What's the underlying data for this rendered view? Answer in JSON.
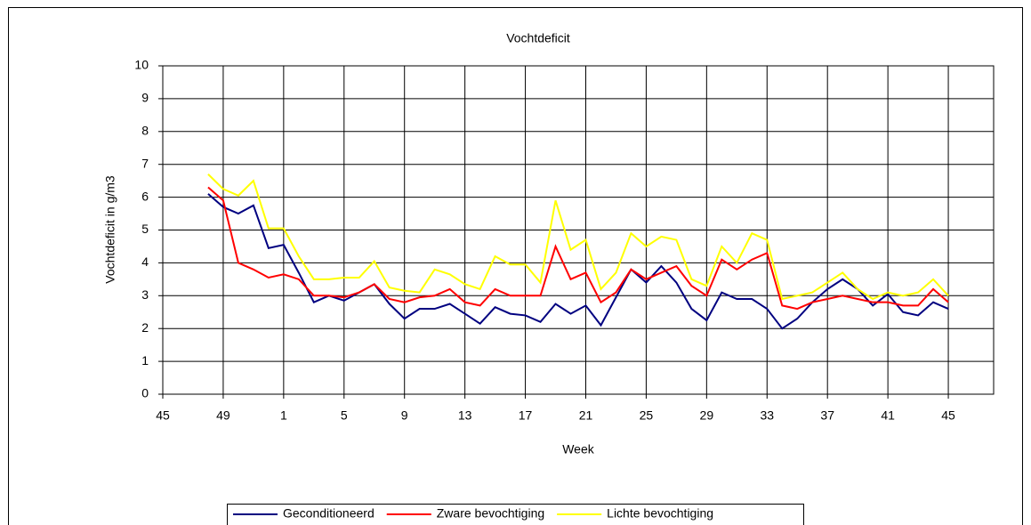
{
  "chart_data": {
    "type": "line",
    "title": "Vochtdeficit",
    "x_label": "Week",
    "y_label": "Vochtdeficit in g/m3",
    "categories": [
      "45",
      null,
      null,
      null,
      "49",
      null,
      null,
      null,
      "1",
      null,
      null,
      null,
      "5",
      null,
      null,
      null,
      "9",
      null,
      null,
      null,
      "13",
      null,
      null,
      null,
      "17",
      null,
      null,
      null,
      "21",
      null,
      null,
      null,
      "25",
      null,
      null,
      null,
      "29",
      null,
      null,
      null,
      "33",
      null,
      null,
      null,
      "37",
      null,
      null,
      null,
      "41",
      null,
      null,
      null,
      "45",
      null,
      null,
      null
    ],
    "ylim": [
      0,
      10
    ],
    "yticks": [
      0,
      1,
      2,
      3,
      4,
      5,
      6,
      7,
      8,
      9,
      10
    ],
    "grid": true,
    "legend": "bottom",
    "series": [
      {
        "name": "Geconditioneerd",
        "color": "#000080",
        "values": [
          null,
          null,
          null,
          6.1,
          5.7,
          5.5,
          5.75,
          4.45,
          4.55,
          3.7,
          2.8,
          3.0,
          2.85,
          3.1,
          3.35,
          2.75,
          2.3,
          2.6,
          2.6,
          2.75,
          2.45,
          2.15,
          2.65,
          2.45,
          2.4,
          2.2,
          2.75,
          2.45,
          2.7,
          2.1,
          2.95,
          3.8,
          3.4,
          3.9,
          3.4,
          2.6,
          2.25,
          3.1,
          2.9,
          2.9,
          2.6,
          2.0,
          2.3,
          2.8,
          3.2,
          3.5,
          3.2,
          2.7,
          3.05,
          2.5,
          2.4,
          2.8,
          2.6,
          null,
          null,
          null
        ]
      },
      {
        "name": "Zware bevochtiging",
        "color": "#ff0000",
        "values": [
          null,
          null,
          null,
          6.3,
          5.9,
          4.0,
          3.8,
          3.55,
          3.65,
          3.5,
          3.0,
          3.0,
          2.95,
          3.1,
          3.35,
          2.9,
          2.8,
          2.95,
          3.0,
          3.2,
          2.8,
          2.7,
          3.2,
          3.0,
          3.0,
          3.0,
          4.5,
          3.5,
          3.7,
          2.8,
          3.1,
          3.8,
          3.5,
          3.7,
          3.9,
          3.3,
          3.0,
          4.1,
          3.8,
          4.1,
          4.3,
          2.7,
          2.6,
          2.8,
          2.9,
          3.0,
          2.9,
          2.8,
          2.8,
          2.7,
          2.7,
          3.2,
          2.8,
          null,
          null,
          null
        ]
      },
      {
        "name": "Lichte bevochtiging",
        "color": "#ffff00",
        "values": [
          null,
          null,
          null,
          6.7,
          6.25,
          6.05,
          6.5,
          5.05,
          5.05,
          4.2,
          3.5,
          3.5,
          3.55,
          3.55,
          4.05,
          3.25,
          3.15,
          3.1,
          3.8,
          3.65,
          3.35,
          3.2,
          4.2,
          3.95,
          3.95,
          3.4,
          5.9,
          4.4,
          4.7,
          3.2,
          3.7,
          4.9,
          4.5,
          4.8,
          4.7,
          3.5,
          3.3,
          4.5,
          4.0,
          4.9,
          4.7,
          2.9,
          3.0,
          3.1,
          3.4,
          3.7,
          3.2,
          2.9,
          3.1,
          3.0,
          3.1,
          3.5,
          3.0,
          null,
          null,
          null
        ]
      }
    ]
  }
}
